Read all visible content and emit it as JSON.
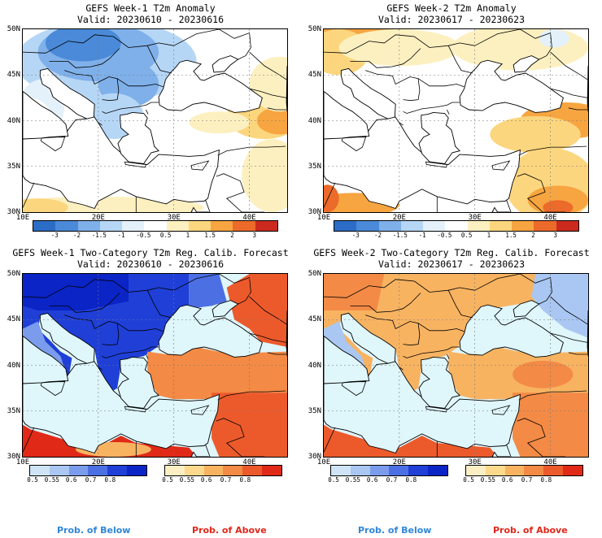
{
  "panels": [
    {
      "title": "GEFS Week-1 T2m Anomaly",
      "valid": "Valid: 20230610 - 20230616"
    },
    {
      "title": "GEFS Week-2 T2m Anomaly",
      "valid": "Valid: 20230617 - 20230623"
    },
    {
      "title": "GEFS Week-1 Two-Category T2m Reg. Calib. Forecast",
      "valid": "Valid: 20230610 - 20230616"
    },
    {
      "title": "GEFS Week-2 Two-Category T2m Reg. Calib. Forecast",
      "valid": "Valid: 20230617 - 20230623"
    }
  ],
  "lat_labels": [
    "50N",
    "45N",
    "40N",
    "35N",
    "30N"
  ],
  "lon_labels": [
    "10E",
    "20E",
    "30E",
    "40E"
  ],
  "anomaly_colorbar": {
    "ticks": [
      "-3",
      "-2",
      "-1.5",
      "-1",
      "-0.5",
      "0.5",
      "1",
      "1.5",
      "2",
      "3"
    ],
    "colors": [
      "#2b6dc6",
      "#4a8ad8",
      "#7fb0ea",
      "#b6d6f6",
      "#e4f1fb",
      "#ffffff",
      "#fdf0c0",
      "#fcd67e",
      "#f7a541",
      "#ec6a2a",
      "#cc2a1e"
    ]
  },
  "prob_below_colorbar": {
    "ticks": [
      "0.5",
      "0.55",
      "0.6",
      "0.7",
      "0.8"
    ],
    "colors": [
      "#cfe4f7",
      "#a9c7f2",
      "#7b9cec",
      "#4c6fe4",
      "#1f3fd7",
      "#0a24c6"
    ]
  },
  "prob_above_colorbar": {
    "ticks": [
      "0.5",
      "0.55",
      "0.6",
      "0.7",
      "0.8"
    ],
    "colors": [
      "#fdefc4",
      "#fcd98c",
      "#f8b361",
      "#f38a45",
      "#ec5a2c",
      "#e02a17"
    ]
  },
  "footer": {
    "left_below": "Prob. of Below",
    "left_above": "Prob. of Above",
    "right_below": "Prob. of Below",
    "right_above": "Prob. of Above",
    "below_color": "#2f86d9",
    "above_color": "#e0261a"
  },
  "sea_color": "#dff6fb"
}
